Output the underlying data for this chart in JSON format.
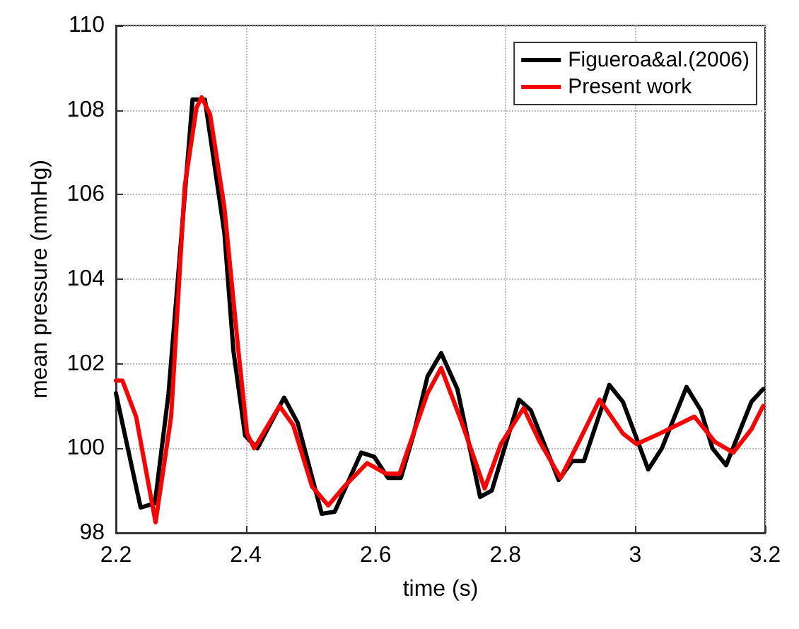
{
  "chart_data": {
    "type": "line",
    "xlabel": "time (s)",
    "ylabel": "mean pressure (mmHg)",
    "xlim": [
      2.2,
      3.2
    ],
    "xticks": [
      2.2,
      2.4,
      2.6,
      2.8,
      3,
      3.2
    ],
    "ylim": [
      98,
      110
    ],
    "yticks": [
      98,
      100,
      102,
      104,
      106,
      108,
      110
    ],
    "grid": true,
    "legend": "top right",
    "line_style": "solid",
    "marker": "none",
    "series": [
      {
        "name": "Figueroa&al.(2006)",
        "color": "#000000",
        "x": [
          2.2,
          2.238,
          2.26,
          2.281,
          2.318,
          2.337,
          2.367,
          2.381,
          2.399,
          2.418,
          2.459,
          2.48,
          2.517,
          2.537,
          2.578,
          2.598,
          2.619,
          2.639,
          2.658,
          2.68,
          2.701,
          2.726,
          2.761,
          2.779,
          2.821,
          2.839,
          2.882,
          2.903,
          2.921,
          2.96,
          2.981,
          3.02,
          3.041,
          3.079,
          3.101,
          3.119,
          3.14,
          3.179,
          3.197
        ],
        "values": [
          101.3,
          98.6,
          98.7,
          101.3,
          108.25,
          108.25,
          105.1,
          102.3,
          100.3,
          100.0,
          101.2,
          100.6,
          98.45,
          98.5,
          99.9,
          99.8,
          99.3,
          99.3,
          100.3,
          101.7,
          102.25,
          101.4,
          98.85,
          99.0,
          101.15,
          100.9,
          99.25,
          99.7,
          99.7,
          101.5,
          101.1,
          99.5,
          100.0,
          101.45,
          100.9,
          100.0,
          99.6,
          101.1,
          101.4
        ]
      },
      {
        "name": "Present work",
        "color": "#ff0000",
        "x": [
          2.2,
          2.21,
          2.231,
          2.261,
          2.285,
          2.306,
          2.324,
          2.332,
          2.345,
          2.367,
          2.388,
          2.402,
          2.413,
          2.452,
          2.473,
          2.502,
          2.527,
          2.552,
          2.587,
          2.616,
          2.637,
          2.68,
          2.701,
          2.733,
          2.768,
          2.793,
          2.828,
          2.853,
          2.885,
          2.913,
          2.945,
          2.981,
          3.002,
          3.038,
          3.091,
          3.123,
          3.151,
          3.179,
          3.197
        ],
        "values": [
          101.6,
          101.6,
          100.75,
          98.25,
          100.75,
          106.2,
          108.05,
          108.3,
          107.9,
          105.7,
          102.4,
          100.35,
          100.0,
          101.0,
          100.55,
          99.1,
          98.65,
          99.1,
          99.65,
          99.4,
          99.4,
          101.3,
          101.9,
          100.6,
          99.05,
          100.1,
          100.95,
          100.15,
          99.3,
          100.15,
          101.15,
          100.35,
          100.1,
          100.35,
          100.75,
          100.15,
          99.9,
          100.45,
          101.0
        ]
      }
    ]
  }
}
